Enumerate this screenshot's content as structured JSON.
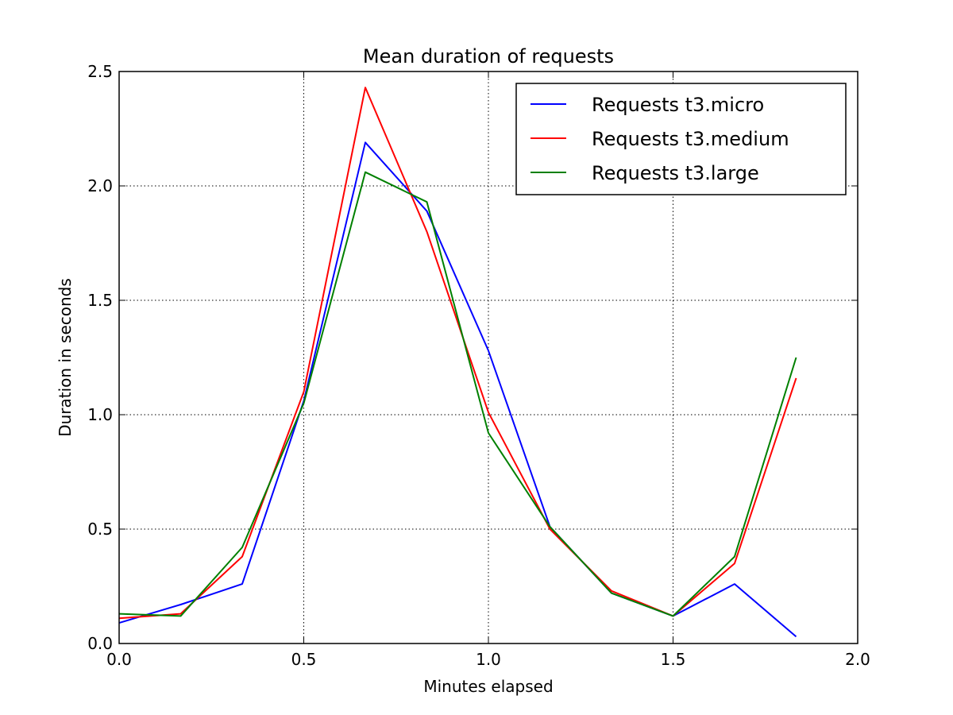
{
  "chart_data": {
    "type": "line",
    "title": "Mean duration of requests",
    "xlabel": "Minutes elapsed",
    "ylabel": "Duration in seconds",
    "xlim": [
      0.0,
      2.0
    ],
    "ylim": [
      0.0,
      2.5
    ],
    "xticks": [
      "0.0",
      "0.5",
      "1.0",
      "1.5",
      "2.0"
    ],
    "yticks": [
      "0.0",
      "0.5",
      "1.0",
      "1.5",
      "2.0",
      "2.5"
    ],
    "grid": true,
    "legend_position": "top-right",
    "series": [
      {
        "name": "Requests t3.micro",
        "color": "#0000ff",
        "x": [
          0.0,
          0.1667,
          0.3333,
          0.5,
          0.6667,
          0.8333,
          1.0,
          1.1667,
          1.3333,
          1.5,
          1.6667,
          1.8333
        ],
        "y": [
          0.09,
          0.17,
          0.26,
          1.06,
          2.19,
          1.89,
          1.28,
          0.51,
          0.22,
          0.12,
          0.26,
          0.03
        ]
      },
      {
        "name": "Requests t3.medium",
        "color": "#ff0000",
        "x": [
          0.0,
          0.1667,
          0.3333,
          0.5,
          0.6667,
          0.8333,
          1.0,
          1.1667,
          1.3333,
          1.5,
          1.6667,
          1.8333
        ],
        "y": [
          0.11,
          0.13,
          0.38,
          1.1,
          2.43,
          1.8,
          1.01,
          0.5,
          0.23,
          0.12,
          0.35,
          1.16
        ]
      },
      {
        "name": "Requests t3.large",
        "color": "#008000",
        "x": [
          0.0,
          0.1667,
          0.3333,
          0.5,
          0.6667,
          0.8333,
          1.0,
          1.1667,
          1.3333,
          1.5,
          1.6667,
          1.8333
        ],
        "y": [
          0.13,
          0.12,
          0.42,
          1.05,
          2.06,
          1.93,
          0.92,
          0.51,
          0.22,
          0.12,
          0.38,
          1.25
        ]
      }
    ]
  }
}
